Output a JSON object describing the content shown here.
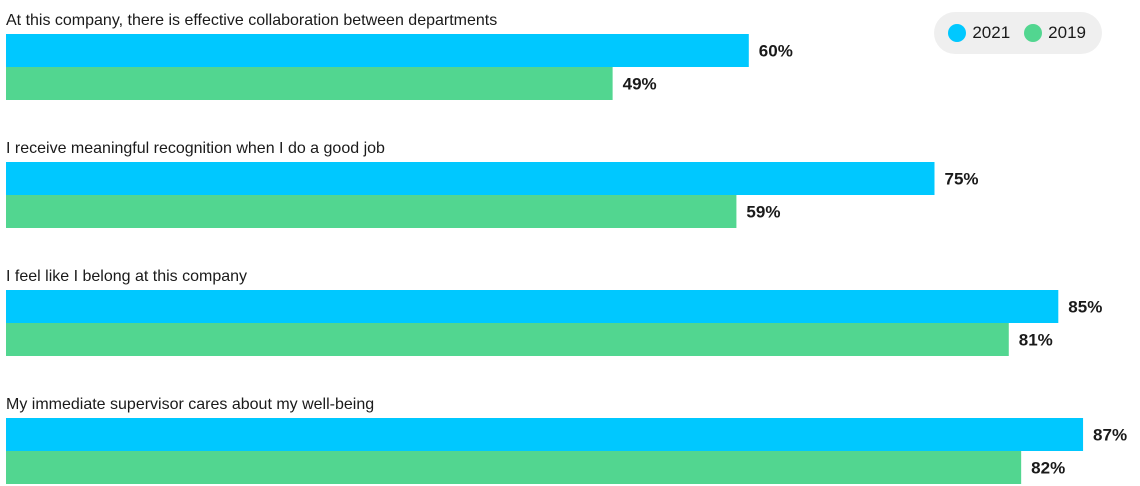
{
  "chart_data": {
    "type": "bar",
    "orientation": "horizontal",
    "categories": [
      "At this company, there is effective collaboration between departments",
      "I receive meaningful recognition when I do a good job",
      "I feel like I belong at this company",
      "My immediate supervisor cares about my well-being"
    ],
    "series": [
      {
        "name": "2021",
        "color": "#00c8ff",
        "values": [
          60,
          75,
          85,
          87
        ]
      },
      {
        "name": "2019",
        "color": "#52d690",
        "values": [
          49,
          59,
          81,
          82
        ]
      }
    ],
    "value_suffix": "%",
    "xlim": [
      0,
      100
    ],
    "grid": false,
    "legend_position": "top-right"
  },
  "legend": {
    "items": [
      {
        "label": "2021",
        "color": "#00c8ff"
      },
      {
        "label": "2019",
        "color": "#52d690"
      }
    ]
  }
}
